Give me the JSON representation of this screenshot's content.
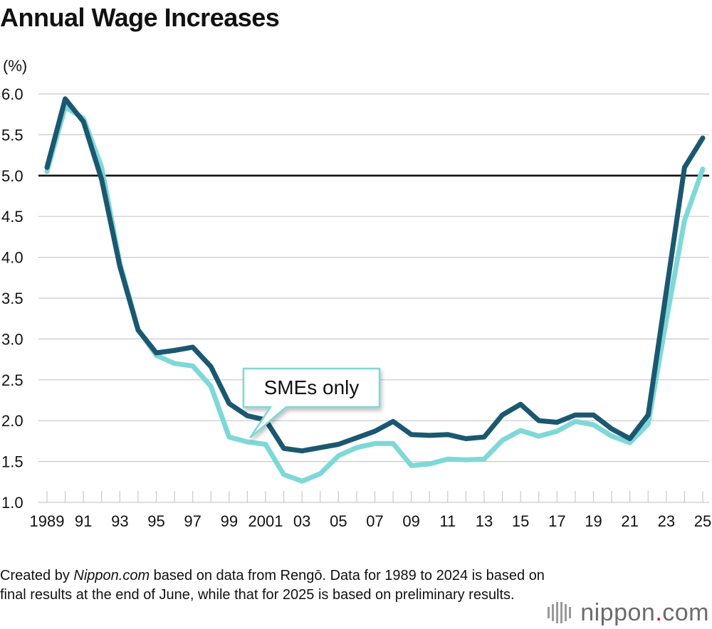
{
  "title": "Annual Wage Increases",
  "chart_data": {
    "type": "line",
    "title": "Annual Wage Increases",
    "unit_label": "(%)",
    "x": [
      1989,
      1990,
      1991,
      1992,
      1993,
      1994,
      1995,
      1996,
      1997,
      1998,
      1999,
      2000,
      2001,
      2002,
      2003,
      2004,
      2005,
      2006,
      2007,
      2008,
      2009,
      2010,
      2011,
      2012,
      2013,
      2014,
      2015,
      2016,
      2017,
      2018,
      2019,
      2020,
      2021,
      2022,
      2023,
      2024,
      2025
    ],
    "x_tick_labels": [
      {
        "year": 1989,
        "label": "1989"
      },
      {
        "year": 1991,
        "label": "91"
      },
      {
        "year": 1993,
        "label": "93"
      },
      {
        "year": 1995,
        "label": "95"
      },
      {
        "year": 1997,
        "label": "97"
      },
      {
        "year": 1999,
        "label": "99"
      },
      {
        "year": 2001,
        "label": "2001"
      },
      {
        "year": 2003,
        "label": "03"
      },
      {
        "year": 2005,
        "label": "05"
      },
      {
        "year": 2007,
        "label": "07"
      },
      {
        "year": 2009,
        "label": "09"
      },
      {
        "year": 2011,
        "label": "11"
      },
      {
        "year": 2013,
        "label": "13"
      },
      {
        "year": 2015,
        "label": "15"
      },
      {
        "year": 2017,
        "label": "17"
      },
      {
        "year": 2019,
        "label": "19"
      },
      {
        "year": 2021,
        "label": "21"
      },
      {
        "year": 2023,
        "label": "23"
      },
      {
        "year": 2025,
        "label": "25"
      }
    ],
    "y_ticks": [
      "1.0",
      "1.5",
      "2.0",
      "2.5",
      "3.0",
      "3.5",
      "4.0",
      "4.5",
      "5.0",
      "5.5",
      "6.0"
    ],
    "ylim": [
      1.0,
      6.0
    ],
    "reference_line": 5.0,
    "grid": true,
    "series": [
      {
        "key": "overall",
        "color": "#1b5870",
        "values": [
          5.1,
          5.94,
          5.66,
          4.95,
          3.89,
          3.11,
          2.83,
          2.86,
          2.9,
          2.66,
          2.21,
          2.06,
          2.01,
          1.66,
          1.63,
          1.67,
          1.71,
          1.79,
          1.87,
          1.99,
          1.83,
          1.82,
          1.83,
          1.78,
          1.8,
          2.07,
          2.2,
          2.0,
          1.98,
          2.07,
          2.07,
          1.9,
          1.78,
          2.07,
          3.58,
          5.1,
          5.46
        ]
      },
      {
        "key": "smes",
        "name": "SMEs only",
        "color": "#7fd8d8",
        "values": [
          5.05,
          5.84,
          5.7,
          5.1,
          3.93,
          3.12,
          2.8,
          2.7,
          2.67,
          2.42,
          1.8,
          1.74,
          1.71,
          1.34,
          1.26,
          1.35,
          1.57,
          1.67,
          1.72,
          1.72,
          1.45,
          1.47,
          1.53,
          1.52,
          1.53,
          1.76,
          1.88,
          1.81,
          1.87,
          1.99,
          1.95,
          1.81,
          1.73,
          1.96,
          3.23,
          4.45,
          5.08
        ]
      }
    ],
    "annotation": {
      "text": "SMEs only",
      "points_to_year": 2000
    }
  },
  "footnote": {
    "before": "Created by ",
    "italic": "Nippon.com",
    "after": " based on data from Rengō. Data for 1989 to 2024 is based on final results at the end of June, while that for 2025 is based on preliminary results."
  },
  "logo": {
    "name": "nippon",
    "dot": ".",
    "tld": "com"
  }
}
